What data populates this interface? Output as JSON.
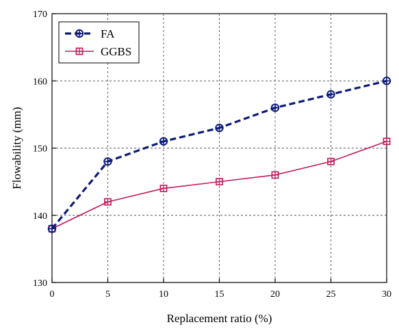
{
  "chart_data": {
    "type": "line",
    "title": "",
    "xlabel": "Replacement ratio (%)",
    "ylabel": "Flowability (mm)",
    "xlim": [
      0,
      30
    ],
    "ylim": [
      130,
      170
    ],
    "x_ticks": [
      0,
      5,
      10,
      15,
      20,
      25,
      30
    ],
    "y_ticks": [
      130,
      140,
      150,
      160,
      170
    ],
    "grid": true,
    "legend_position": "top-left",
    "x": [
      0,
      5,
      10,
      15,
      20,
      25,
      30
    ],
    "series": [
      {
        "name": "FA",
        "values": [
          138,
          148,
          151,
          153,
          156,
          158,
          160
        ],
        "color": "#0d1a78",
        "line_style": "dashed",
        "marker": "circle-plus"
      },
      {
        "name": "GGBS",
        "values": [
          138,
          142,
          144,
          145,
          146,
          148,
          151
        ],
        "color": "#c2185b",
        "line_style": "solid",
        "marker": "square-plus"
      }
    ]
  }
}
